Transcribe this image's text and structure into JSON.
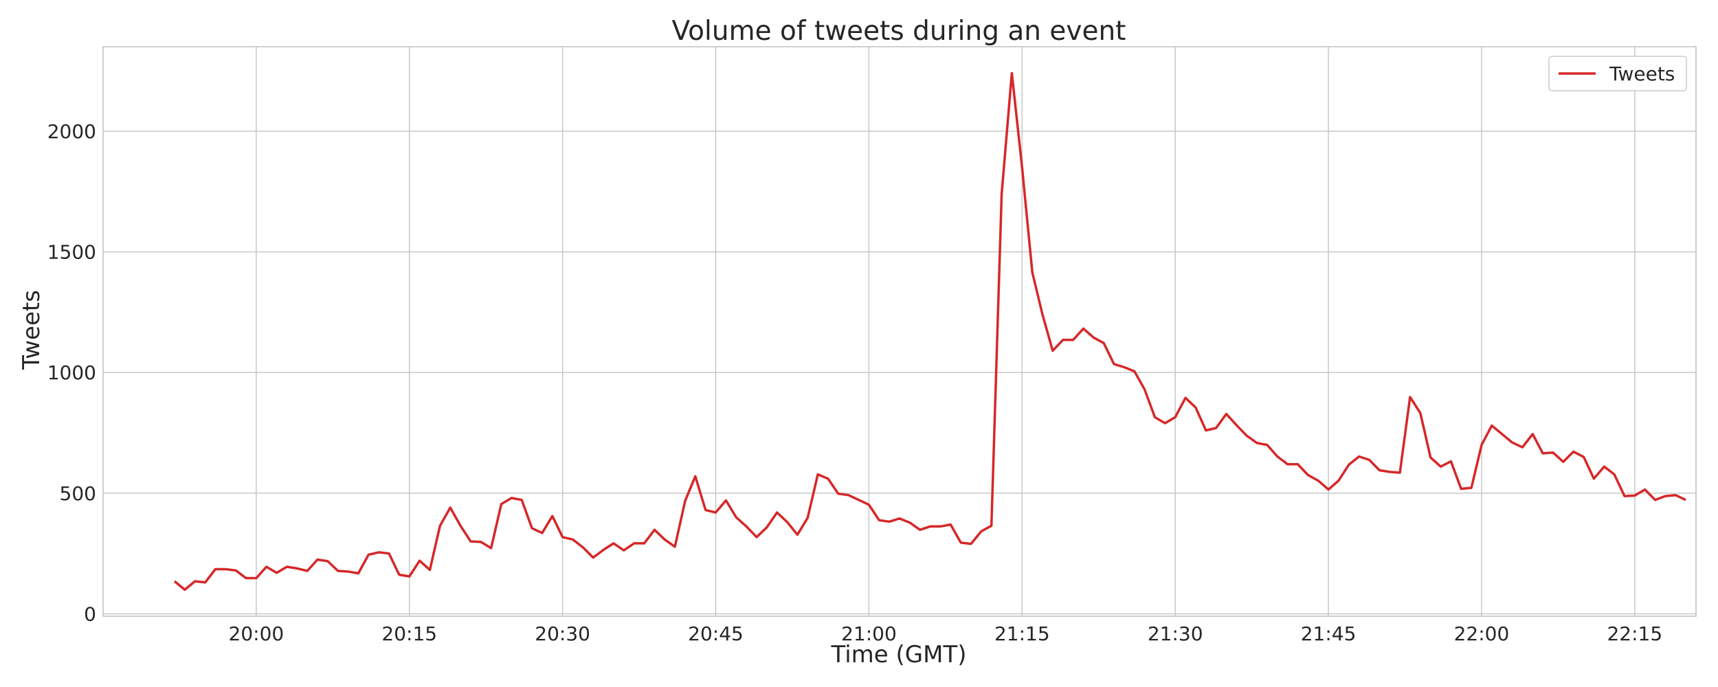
{
  "chart_data": {
    "type": "line",
    "title": "Volume of tweets during an event",
    "xlabel": "Time (GMT)",
    "ylabel": "Tweets",
    "x_start": "19:52",
    "x_step_minutes": 1,
    "xticks": [
      "20:00",
      "20:15",
      "20:30",
      "20:45",
      "21:00",
      "21:15",
      "21:30",
      "21:45",
      "22:00",
      "22:15"
    ],
    "yticks": [
      0,
      500,
      1000,
      1500,
      2000
    ],
    "xlim": [
      "19:45",
      "22:21"
    ],
    "ylim": [
      -10,
      2350
    ],
    "grid": true,
    "legend_position": "top-right",
    "colors": {
      "series": "#d62728",
      "grid": "#c8c8c8",
      "frame": "#bfbfbf"
    },
    "series": [
      {
        "name": "Tweets",
        "values": [
          135,
          100,
          135,
          130,
          185,
          185,
          180,
          148,
          148,
          195,
          170,
          195,
          188,
          178,
          225,
          218,
          178,
          175,
          168,
          245,
          255,
          250,
          162,
          155,
          220,
          182,
          365,
          440,
          365,
          300,
          298,
          272,
          455,
          480,
          472,
          355,
          335,
          405,
          318,
          308,
          275,
          233,
          265,
          292,
          263,
          292,
          292,
          348,
          308,
          278,
          468,
          570,
          430,
          420,
          470,
          400,
          362,
          318,
          358,
          420,
          380,
          328,
          398,
          578,
          560,
          498,
          492,
          472,
          452,
          388,
          382,
          395,
          378,
          348,
          362,
          362,
          370,
          295,
          290,
          342,
          365,
          1740,
          2240,
          1850,
          1415,
          1240,
          1090,
          1135,
          1135,
          1182,
          1145,
          1122,
          1035,
          1022,
          1005,
          930,
          815,
          790,
          815,
          895,
          855,
          760,
          770,
          828,
          782,
          738,
          708,
          700,
          652,
          620,
          620,
          575,
          552,
          515,
          552,
          618,
          652,
          638,
          595,
          588,
          585,
          898,
          832,
          648,
          610,
          632,
          518,
          522,
          700,
          780,
          745,
          710,
          690,
          745,
          665,
          668,
          630,
          672,
          650,
          560,
          610,
          578,
          488,
          490,
          515,
          472,
          488,
          492,
          472
        ]
      }
    ]
  }
}
